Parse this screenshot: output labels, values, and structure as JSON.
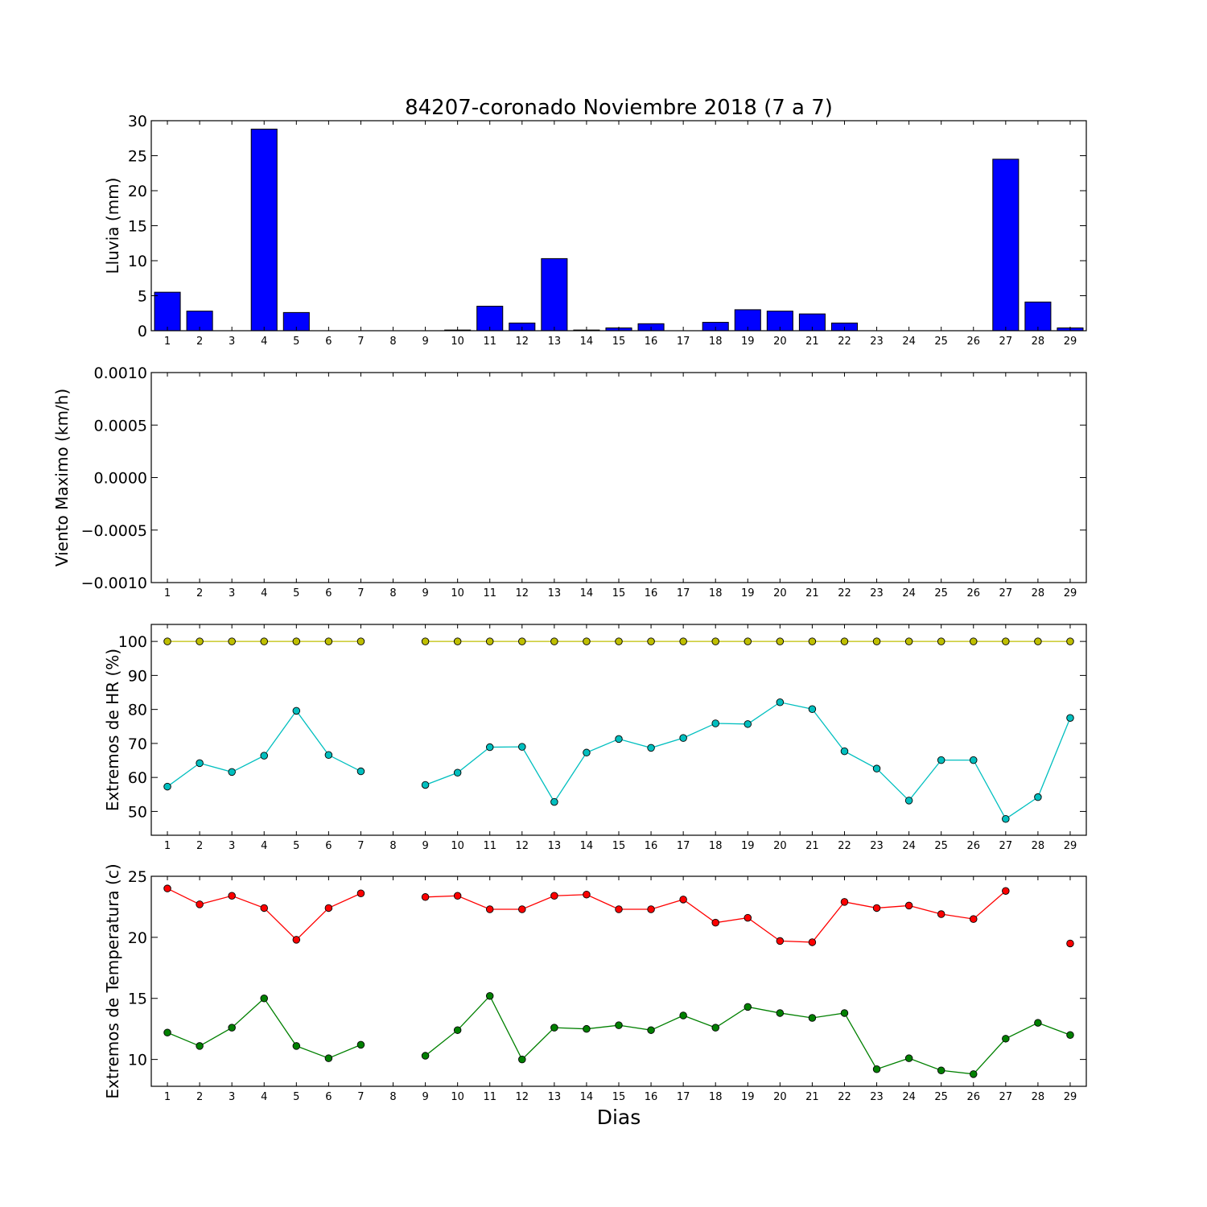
{
  "chart_data": [
    {
      "type": "bar",
      "title": "84207-coronado Noviembre 2018  (7 a 7)",
      "ylabel": "Lluvia (mm)",
      "xlabel": "",
      "categories": [
        1,
        2,
        3,
        4,
        5,
        6,
        7,
        8,
        9,
        10,
        11,
        12,
        13,
        14,
        15,
        16,
        17,
        18,
        19,
        20,
        21,
        22,
        23,
        24,
        25,
        26,
        27,
        28,
        29
      ],
      "values": [
        5.5,
        2.8,
        0,
        28.8,
        2.6,
        0,
        0,
        null,
        0,
        0.1,
        3.5,
        1.1,
        10.3,
        0.1,
        0.4,
        1.0,
        0,
        1.2,
        3.0,
        2.8,
        2.4,
        1.1,
        0,
        0,
        0,
        0,
        24.5,
        4.1,
        0.4
      ],
      "ylim": [
        0,
        30
      ],
      "yticks": [
        0,
        5,
        10,
        15,
        20,
        25,
        30
      ],
      "ytick_labels": [
        "0",
        "5",
        "10",
        "15",
        "20",
        "25",
        "30"
      ],
      "grid": false,
      "colors": {
        "bar": "#0000ff"
      }
    },
    {
      "type": "line",
      "title": "",
      "ylabel": "Viento Maximo (km/h)",
      "xlabel": "",
      "x": [
        1,
        2,
        3,
        4,
        5,
        6,
        7,
        8,
        9,
        10,
        11,
        12,
        13,
        14,
        15,
        16,
        17,
        18,
        19,
        20,
        21,
        22,
        23,
        24,
        25,
        26,
        27,
        28,
        29
      ],
      "series": [],
      "ylim": [
        -0.001,
        0.001
      ],
      "yticks": [
        -0.001,
        -0.0005,
        0,
        0.0005,
        0.001
      ],
      "ytick_labels": [
        "−0.0010",
        "−0.0005",
        "0.0000",
        "0.0005",
        "0.0010"
      ],
      "grid": false
    },
    {
      "type": "line",
      "title": "",
      "ylabel": "Extremos de HR (%)",
      "xlabel": "",
      "x": [
        1,
        2,
        3,
        4,
        5,
        6,
        7,
        8,
        9,
        10,
        11,
        12,
        13,
        14,
        15,
        16,
        17,
        18,
        19,
        20,
        21,
        22,
        23,
        24,
        25,
        26,
        27,
        28,
        29
      ],
      "series": [
        {
          "values": [
            100,
            100,
            100,
            100,
            100,
            100,
            100,
            null,
            100,
            100,
            100,
            100,
            100,
            100,
            100,
            100,
            100,
            100,
            100,
            100,
            100,
            100,
            100,
            100,
            100,
            100,
            100,
            100,
            100
          ],
          "color": "#bfbf00"
        },
        {
          "values": [
            57.3,
            64.2,
            61.6,
            66.4,
            79.6,
            66.6,
            61.8,
            null,
            57.8,
            61.4,
            68.9,
            69.0,
            52.8,
            67.3,
            71.3,
            68.7,
            71.6,
            75.9,
            75.7,
            82.1,
            80.1,
            67.7,
            62.6,
            53.2,
            65.1,
            65.1,
            47.8,
            54.2,
            77.5
          ],
          "color": "#00bfbf"
        }
      ],
      "ylim": [
        43,
        105
      ],
      "yticks": [
        50,
        60,
        70,
        80,
        90,
        100
      ],
      "ytick_labels": [
        "50",
        "60",
        "70",
        "80",
        "90",
        "100"
      ],
      "grid": false
    },
    {
      "type": "line",
      "title": "",
      "ylabel": "Extremos de Temperatura (c)",
      "xlabel": "Dias",
      "x": [
        1,
        2,
        3,
        4,
        5,
        6,
        7,
        8,
        9,
        10,
        11,
        12,
        13,
        14,
        15,
        16,
        17,
        18,
        19,
        20,
        21,
        22,
        23,
        24,
        25,
        26,
        27,
        28,
        29
      ],
      "series": [
        {
          "values": [
            24.0,
            22.7,
            23.4,
            22.4,
            19.8,
            22.4,
            23.6,
            null,
            23.3,
            23.4,
            22.3,
            22.3,
            23.4,
            23.5,
            22.3,
            22.3,
            23.1,
            21.2,
            21.6,
            19.7,
            19.6,
            22.9,
            22.4,
            22.6,
            21.9,
            21.5,
            23.8,
            null,
            19.5
          ],
          "color": "#ff0000"
        },
        {
          "values": [
            12.2,
            11.1,
            12.6,
            15.0,
            11.1,
            10.1,
            11.2,
            null,
            10.3,
            12.4,
            15.2,
            10.0,
            12.6,
            12.5,
            12.8,
            12.4,
            13.6,
            12.6,
            14.3,
            13.8,
            13.4,
            13.8,
            9.2,
            10.1,
            9.1,
            8.8,
            11.7,
            13.0,
            12.0
          ],
          "color": "#008000"
        }
      ],
      "ylim": [
        7.8,
        25
      ],
      "yticks": [
        10,
        15,
        20,
        25
      ],
      "ytick_labels": [
        "10",
        "15",
        "20",
        "25"
      ],
      "grid": false
    }
  ]
}
